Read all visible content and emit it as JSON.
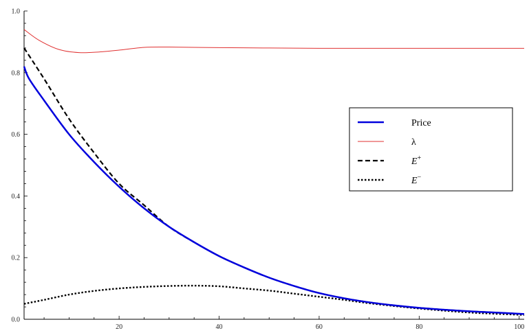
{
  "chart_data": {
    "type": "line",
    "title": "",
    "xlabel": "",
    "ylabel": "",
    "xlim": [
      1,
      101
    ],
    "ylim": [
      0,
      1.0
    ],
    "grid": false,
    "legend_position": "right",
    "x_ticks": [
      20,
      40,
      60,
      80,
      100
    ],
    "y_ticks": [
      0.0,
      0.2,
      0.4,
      0.6,
      0.8,
      1.0
    ],
    "x_tick_labels": [
      "20",
      "40",
      "60",
      "80",
      "100"
    ],
    "y_tick_labels": [
      "0.0",
      "0.2",
      "0.4",
      "0.6",
      "0.8",
      "1.0"
    ],
    "series": [
      {
        "name": "Price",
        "color": "#0000dd",
        "style": "solid-thick",
        "points": [
          [
            1,
            0.82
          ],
          [
            2,
            0.78
          ],
          [
            5,
            0.71
          ],
          [
            10,
            0.6
          ],
          [
            15,
            0.51
          ],
          [
            20,
            0.43
          ],
          [
            25,
            0.36
          ],
          [
            30,
            0.3
          ],
          [
            35,
            0.25
          ],
          [
            40,
            0.205
          ],
          [
            45,
            0.168
          ],
          [
            50,
            0.135
          ],
          [
            55,
            0.108
          ],
          [
            60,
            0.085
          ],
          [
            65,
            0.068
          ],
          [
            70,
            0.055
          ],
          [
            75,
            0.045
          ],
          [
            80,
            0.037
          ],
          [
            85,
            0.031
          ],
          [
            90,
            0.026
          ],
          [
            95,
            0.022
          ],
          [
            101,
            0.017
          ]
        ]
      },
      {
        "name": "λ",
        "color": "#e03030",
        "style": "solid-thin",
        "points": [
          [
            1,
            0.94
          ],
          [
            4,
            0.905
          ],
          [
            8,
            0.875
          ],
          [
            12,
            0.865
          ],
          [
            16,
            0.867
          ],
          [
            20,
            0.873
          ],
          [
            25,
            0.882
          ],
          [
            30,
            0.883
          ],
          [
            40,
            0.881
          ],
          [
            50,
            0.88
          ],
          [
            60,
            0.879
          ],
          [
            70,
            0.879
          ],
          [
            80,
            0.879
          ],
          [
            90,
            0.879
          ],
          [
            101,
            0.879
          ]
        ]
      },
      {
        "name": "E+",
        "name_base": "E",
        "name_sup": "+",
        "color": "#000000",
        "style": "dashed",
        "points": [
          [
            1,
            0.88
          ],
          [
            5,
            0.78
          ],
          [
            10,
            0.65
          ],
          [
            15,
            0.54
          ],
          [
            20,
            0.44
          ],
          [
            25,
            0.37
          ],
          [
            30,
            0.3
          ],
          [
            35,
            0.25
          ],
          [
            40,
            0.205
          ],
          [
            45,
            0.168
          ],
          [
            50,
            0.135
          ],
          [
            55,
            0.108
          ],
          [
            60,
            0.085
          ],
          [
            65,
            0.068
          ],
          [
            70,
            0.055
          ],
          [
            75,
            0.045
          ],
          [
            80,
            0.037
          ],
          [
            85,
            0.031
          ],
          [
            90,
            0.026
          ],
          [
            95,
            0.022
          ],
          [
            101,
            0.017
          ]
        ]
      },
      {
        "name": "E−",
        "name_base": "E",
        "name_sup": "−",
        "color": "#000000",
        "style": "dotted",
        "points": [
          [
            1,
            0.05
          ],
          [
            5,
            0.063
          ],
          [
            10,
            0.08
          ],
          [
            15,
            0.092
          ],
          [
            20,
            0.1
          ],
          [
            25,
            0.105
          ],
          [
            30,
            0.108
          ],
          [
            35,
            0.109
          ],
          [
            40,
            0.107
          ],
          [
            45,
            0.1
          ],
          [
            50,
            0.093
          ],
          [
            55,
            0.083
          ],
          [
            60,
            0.073
          ],
          [
            65,
            0.063
          ],
          [
            70,
            0.052
          ],
          [
            75,
            0.043
          ],
          [
            80,
            0.035
          ],
          [
            85,
            0.028
          ],
          [
            90,
            0.022
          ],
          [
            95,
            0.018
          ],
          [
            101,
            0.014
          ]
        ]
      }
    ]
  }
}
